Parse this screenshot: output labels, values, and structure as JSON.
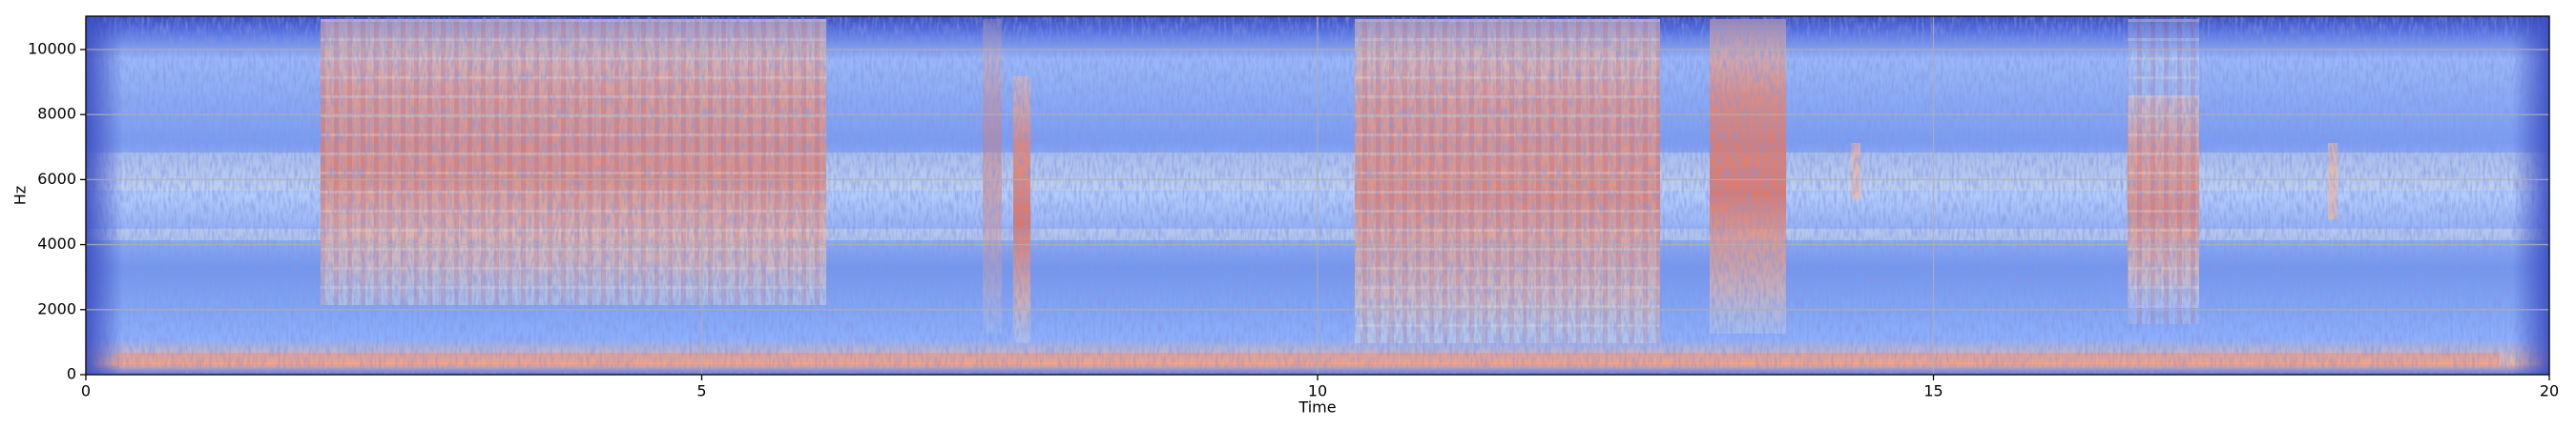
{
  "chart_data": {
    "type": "spectrogram",
    "xlabel": "Time",
    "ylabel": "Hz",
    "xlim": [
      0,
      20
    ],
    "xticks": [
      0,
      5,
      10,
      15,
      20
    ],
    "ylim": [
      0,
      11025
    ],
    "yticks": [
      0,
      2000,
      4000,
      6000,
      8000,
      10000
    ],
    "grid": true
  }
}
